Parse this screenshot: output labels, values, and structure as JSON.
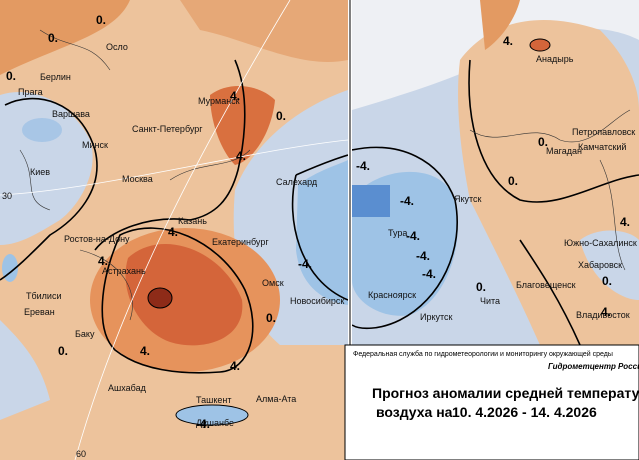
{
  "left_map": {
    "cities": [
      "Осло",
      "Берлин",
      "Прага",
      "Варшава",
      "Минск",
      "Киев",
      "Москва",
      "Санкт-Петербург",
      "Мурманск",
      "Салехард",
      "Казань",
      "Ростов-на-Дону",
      "Екатеринбург",
      "Астрахань",
      "Тбилиси",
      "Ереван",
      "Баку",
      "Омск",
      "Новосибирск",
      "Ашхабад",
      "Ташкент",
      "Алма-Ата",
      "Душанбе"
    ],
    "contour_labels": [
      "0.",
      "0.",
      "4.",
      "0.",
      "4.",
      "4.",
      "4.",
      "-4.",
      "0.",
      "4.",
      "4.",
      "0.",
      "0.",
      "-4."
    ],
    "grid_labels": [
      "30",
      "60"
    ]
  },
  "right_map": {
    "cities": [
      "Анадырь",
      "Петропавловск",
      "Камчатский",
      "Магадан",
      "Якутск",
      "Тура",
      "Красноярск",
      "Иркутск",
      "Чита",
      "Благовещенск",
      "Южно-Сахалинск",
      "Хабаровск",
      "Владивосток"
    ],
    "contour_labels": [
      "4.",
      "-4.",
      "-4.",
      "-4.",
      "-4.",
      "-4.",
      "0.",
      "0.",
      "4.",
      "0.",
      "0.",
      "4."
    ]
  },
  "footer": {
    "agency": "Федеральная служба по гидрометеорологии и мониторингу окружающей среды",
    "center": "Гидрометцентр России",
    "title": "Прогноз аномалии средней температуры",
    "subtitle": "воздуха на",
    "dates": "10. 4.2026 - 14. 4.2026"
  }
}
